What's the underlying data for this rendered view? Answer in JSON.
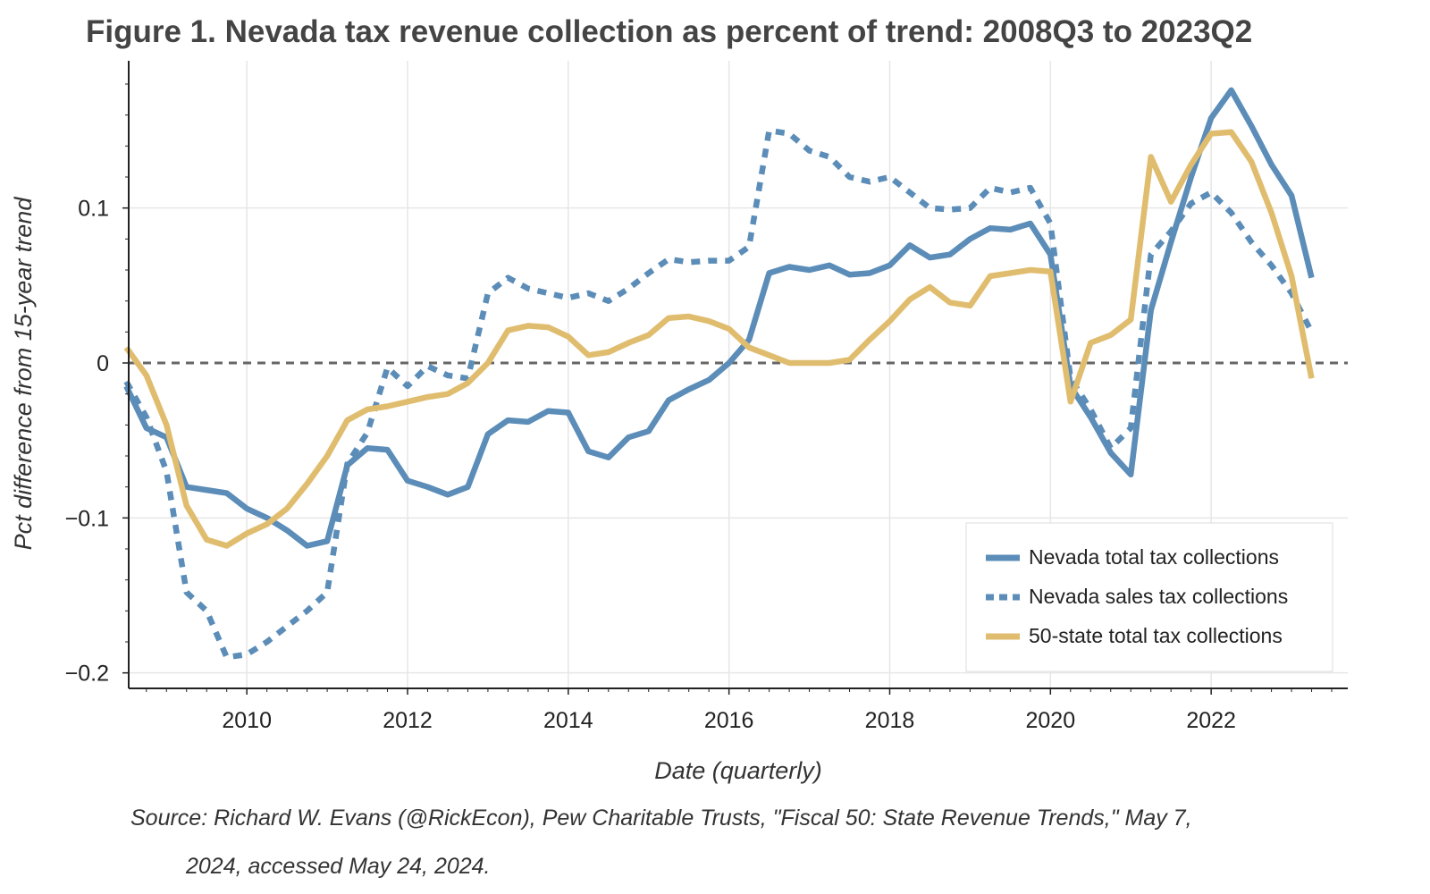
{
  "chart_data": {
    "type": "line",
    "title": "Figure 1. Nevada tax revenue collection as percent of trend: 2008Q3 to 2023Q2",
    "xlabel": "Date (quarterly)",
    "ylabel": "Pct difference from 15-year trend",
    "xlim": [
      2008.53,
      2023.7
    ],
    "ylim": [
      -0.21,
      0.195
    ],
    "x_ticks": [
      2010,
      2012,
      2014,
      2016,
      2018,
      2020,
      2022
    ],
    "x_tick_labels": [
      "2010",
      "2012",
      "2014",
      "2016",
      "2018",
      "2020",
      "2022"
    ],
    "y_ticks": [
      -0.2,
      -0.1,
      0,
      0.1
    ],
    "y_tick_labels": [
      "−0.2",
      "−0.1",
      "0",
      "0.1"
    ],
    "grid": true,
    "zero_line": true,
    "legend_position": "lower-right",
    "x": [
      2008.5,
      2008.75,
      2009.0,
      2009.25,
      2009.5,
      2009.75,
      2010.0,
      2010.25,
      2010.5,
      2010.75,
      2011.0,
      2011.25,
      2011.5,
      2011.75,
      2012.0,
      2012.25,
      2012.5,
      2012.75,
      2013.0,
      2013.25,
      2013.5,
      2013.75,
      2014.0,
      2014.25,
      2014.5,
      2014.75,
      2015.0,
      2015.25,
      2015.5,
      2015.75,
      2016.0,
      2016.25,
      2016.5,
      2016.75,
      2017.0,
      2017.25,
      2017.5,
      2017.75,
      2018.0,
      2018.25,
      2018.5,
      2018.75,
      2019.0,
      2019.25,
      2019.5,
      2019.75,
      2020.0,
      2020.25,
      2020.5,
      2020.75,
      2021.0,
      2021.25,
      2021.5,
      2021.75,
      2022.0,
      2022.25,
      2022.5,
      2022.75,
      2023.0,
      2023.25
    ],
    "series": [
      {
        "name": "Nevada total tax collections",
        "color": "#5b8db8",
        "style": "solid",
        "values": [
          -0.015,
          -0.042,
          -0.048,
          -0.08,
          -0.082,
          -0.084,
          -0.094,
          -0.1,
          -0.108,
          -0.118,
          -0.115,
          -0.066,
          -0.055,
          -0.056,
          -0.076,
          -0.08,
          -0.085,
          -0.08,
          -0.046,
          -0.037,
          -0.038,
          -0.031,
          -0.032,
          -0.057,
          -0.061,
          -0.048,
          -0.044,
          -0.024,
          -0.017,
          -0.011,
          0.0,
          0.015,
          0.058,
          0.062,
          0.06,
          0.063,
          0.057,
          0.058,
          0.063,
          0.076,
          0.068,
          0.07,
          0.08,
          0.087,
          0.086,
          0.09,
          0.07,
          -0.015,
          -0.035,
          -0.058,
          -0.072,
          0.034,
          0.078,
          0.12,
          0.158,
          0.176,
          0.153,
          0.128,
          0.108,
          0.055
        ]
      },
      {
        "name": "Nevada sales tax collections",
        "color": "#5b8db8",
        "style": "dashed",
        "values": [
          -0.012,
          -0.035,
          -0.07,
          -0.148,
          -0.16,
          -0.19,
          -0.188,
          -0.18,
          -0.17,
          -0.16,
          -0.148,
          -0.065,
          -0.045,
          -0.003,
          -0.015,
          -0.002,
          -0.008,
          -0.01,
          0.045,
          0.055,
          0.048,
          0.045,
          0.042,
          0.045,
          0.04,
          0.048,
          0.058,
          0.067,
          0.065,
          0.066,
          0.066,
          0.075,
          0.15,
          0.148,
          0.137,
          0.133,
          0.12,
          0.117,
          0.12,
          0.11,
          0.1,
          0.099,
          0.1,
          0.113,
          0.11,
          0.113,
          0.09,
          -0.01,
          -0.03,
          -0.055,
          -0.042,
          0.07,
          0.085,
          0.103,
          0.11,
          0.097,
          0.078,
          0.063,
          0.045,
          0.02
        ]
      },
      {
        "name": "50-state total tax collections",
        "color": "#e0bd6e",
        "style": "solid",
        "values": [
          0.01,
          -0.008,
          -0.04,
          -0.092,
          -0.114,
          -0.118,
          -0.11,
          -0.104,
          -0.094,
          -0.078,
          -0.06,
          -0.037,
          -0.03,
          -0.028,
          -0.025,
          -0.022,
          -0.02,
          -0.013,
          0.0,
          0.021,
          0.024,
          0.023,
          0.017,
          0.005,
          0.007,
          0.013,
          0.018,
          0.029,
          0.03,
          0.027,
          0.022,
          0.01,
          0.005,
          0.0,
          0.0,
          0.0,
          0.002,
          0.015,
          0.027,
          0.041,
          0.049,
          0.039,
          0.037,
          0.056,
          0.058,
          0.06,
          0.059,
          -0.025,
          0.013,
          0.018,
          0.028,
          0.133,
          0.104,
          0.128,
          0.148,
          0.149,
          0.13,
          0.097,
          0.056,
          -0.01
        ]
      }
    ],
    "source_note": {
      "line1": "Source: Richard W. Evans (@RickEcon), Pew Charitable Trusts, \"Fiscal 50: State Revenue Trends,\" May 7,",
      "line2": "2024, accessed May 24, 2024."
    }
  }
}
